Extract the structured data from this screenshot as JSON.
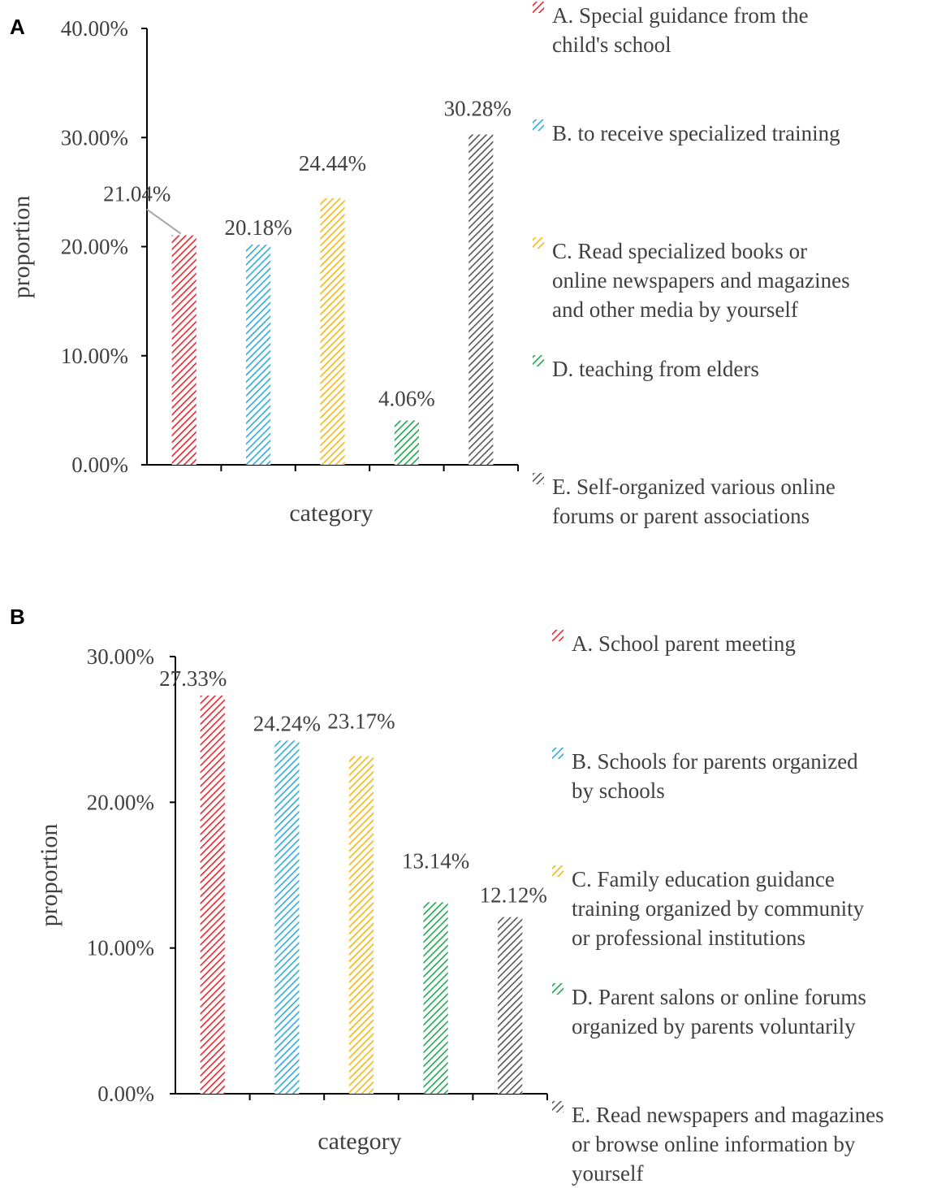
{
  "colors": {
    "A": "#e8252e",
    "B": "#2eaadc",
    "C": "#f5b70f",
    "D": "#1fa850",
    "E": "#555555"
  },
  "chart_data": [
    {
      "panel": "A",
      "type": "bar",
      "xlabel": "category",
      "ylabel": "proportion",
      "ylim": [
        0,
        40
      ],
      "yticks": [
        "0.00%",
        "10.00%",
        "20.00%",
        "30.00%",
        "40.00%"
      ],
      "categories": [
        "A",
        "B",
        "C",
        "D",
        "E"
      ],
      "values": [
        21.04,
        20.18,
        24.44,
        4.06,
        30.28
      ],
      "data_labels": [
        "21.04%",
        "20.18%",
        "24.44%",
        "4.06%",
        "30.28%"
      ],
      "legend_position": "right",
      "legend": [
        {
          "key": "A",
          "lines": [
            "A. Special guidance from the",
            "child's school"
          ]
        },
        {
          "key": "B",
          "lines": [
            "B. to receive specialized training"
          ]
        },
        {
          "key": "C",
          "lines": [
            "C. Read specialized books or",
            "online newspapers and magazines",
            "and other media by yourself"
          ]
        },
        {
          "key": "D",
          "lines": [
            "D. teaching from elders"
          ]
        },
        {
          "key": "E",
          "lines": [
            "E. Self-organized various online",
            "forums or parent associations"
          ]
        }
      ]
    },
    {
      "panel": "B",
      "type": "bar",
      "xlabel": "category",
      "ylabel": "proportion",
      "ylim": [
        0,
        30
      ],
      "yticks": [
        "0.00%",
        "10.00%",
        "20.00%",
        "30.00%"
      ],
      "categories": [
        "A",
        "B",
        "C",
        "D",
        "E"
      ],
      "values": [
        27.33,
        24.24,
        23.17,
        13.14,
        12.12
      ],
      "data_labels": [
        "27.33%",
        "24.24%",
        "23.17%",
        "13.14%",
        "12.12%"
      ],
      "legend_position": "right",
      "legend": [
        {
          "key": "A",
          "lines": [
            "A. School parent meeting"
          ]
        },
        {
          "key": "B",
          "lines": [
            "B. Schools for parents organized",
            "by schools"
          ]
        },
        {
          "key": "C",
          "lines": [
            "C. Family education guidance",
            "training organized by community",
            "or professional institutions"
          ]
        },
        {
          "key": "D",
          "lines": [
            "D. Parent salons or online forums",
            "organized by parents voluntarily"
          ]
        },
        {
          "key": "E",
          "lines": [
            "E. Read newspapers and magazines",
            "or browse online information by",
            "yourself"
          ]
        }
      ]
    }
  ]
}
